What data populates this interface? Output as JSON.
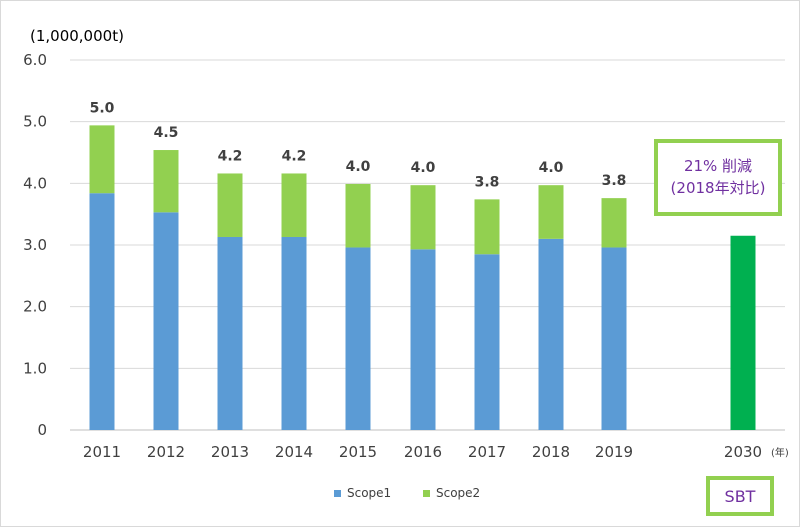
{
  "chart_data": {
    "type": "bar",
    "stacked": true,
    "y_unit_label": "(1,000,000t)",
    "x_unit_label": "(年)",
    "ylim": [
      0,
      6
    ],
    "yticks": [
      "0",
      "1.0",
      "2.0",
      "3.0",
      "4.0",
      "5.0",
      "6.0"
    ],
    "yticks_values": [
      0,
      1,
      2,
      3,
      4,
      5,
      6
    ],
    "grid": "horizontal",
    "legend_position": "bottom",
    "categories": [
      "2011",
      "2012",
      "2013",
      "2014",
      "2015",
      "2016",
      "2017",
      "2018",
      "2019",
      "2030"
    ],
    "series": [
      {
        "name": "Scope1",
        "color": "#5b9bd5",
        "values": [
          3.84,
          3.53,
          3.13,
          3.13,
          2.96,
          2.93,
          2.85,
          3.1,
          2.96,
          null
        ]
      },
      {
        "name": "Scope2",
        "color": "#92d050",
        "values": [
          1.1,
          1.01,
          1.03,
          1.03,
          1.03,
          1.04,
          0.89,
          0.87,
          0.8,
          null
        ]
      },
      {
        "name": "",
        "color": "#00b050",
        "values": [
          null,
          null,
          null,
          null,
          null,
          null,
          null,
          null,
          null,
          3.15
        ]
      }
    ],
    "totals": [
      "5.0",
      "4.5",
      "4.2",
      "4.2",
      "4.0",
      "4.0",
      "3.8",
      "4.0",
      "3.8",
      null
    ],
    "callout": {
      "line1": "21% 削減",
      "line2": "(2018年対比)",
      "border_color": "#92d050"
    },
    "badge": {
      "text": "SBT",
      "border_color": "#92d050"
    }
  }
}
